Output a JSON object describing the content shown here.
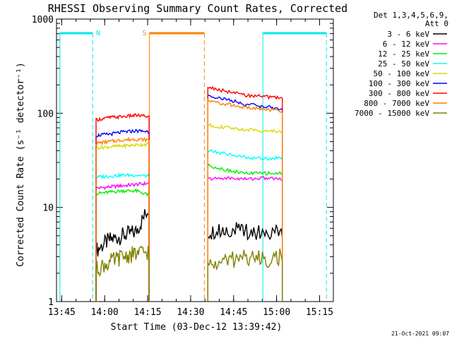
{
  "chart_data": {
    "type": "line",
    "title": "RHESSI Observing Summary Count Rates, Corrected",
    "xlabel": "Start Time (03-Dec-12 13:39:42)",
    "ylabel": "Corrected Count Rate (s⁻¹ detector⁻¹)",
    "yscale": "log",
    "ylim": [
      1,
      1000
    ],
    "xlim_minutes": [
      13.72,
      15.33
    ],
    "x_ticks": [
      "13:45",
      "14:00",
      "14:15",
      "14:30",
      "14:45",
      "15:00",
      "15:15"
    ],
    "y_ticks": [
      "1",
      "10",
      "100",
      "1000"
    ],
    "legend_header": [
      "Det 1,3,4,5,6,9,",
      "Att 0"
    ],
    "legend_position": "right",
    "footer_date": "21-Oct-2021 09:07",
    "series": [
      {
        "name": "3 - 6 keV",
        "color": "#000000",
        "seg1": [
          3.5,
          4.5,
          5.0,
          5.5,
          10.0
        ],
        "seg2": [
          5.5,
          5.8,
          5.6,
          5.5,
          5.4
        ]
      },
      {
        "name": "6 - 12 keV",
        "color": "#ff00ff",
        "seg1": [
          16.0,
          16.5,
          17.0,
          17.5,
          18.0
        ],
        "seg2": [
          20.0,
          20.5,
          20.0,
          20.5,
          20.0
        ]
      },
      {
        "name": "12 - 25 keV",
        "color": "#00ee00",
        "seg1": [
          14.0,
          14.5,
          15.0,
          15.0,
          13.5
        ],
        "seg2": [
          28.0,
          25.0,
          23.0,
          23.0,
          23.0
        ]
      },
      {
        "name": "25 - 50 keV",
        "color": "#00ffff",
        "seg1": [
          21.0,
          21.5,
          22.0,
          22.0,
          21.5
        ],
        "seg2": [
          40.0,
          37.0,
          34.0,
          33.0,
          34.0
        ]
      },
      {
        "name": "50 - 100 keV",
        "color": "#d8d800",
        "seg1": [
          43.0,
          44.0,
          45.0,
          46.0,
          47.0
        ],
        "seg2": [
          75.0,
          70.0,
          67.0,
          65.0,
          64.0
        ]
      },
      {
        "name": "100 - 300 keV",
        "color": "#0000ff",
        "seg1": [
          58.0,
          60.0,
          63.0,
          65.0,
          64.0
        ],
        "seg2": [
          155.0,
          140.0,
          125.0,
          118.0,
          110.0
        ]
      },
      {
        "name": "300 - 800 keV",
        "color": "#ff0000",
        "seg1": [
          85.0,
          90.0,
          92.0,
          95.0,
          92.0
        ],
        "seg2": [
          190.0,
          170.0,
          155.0,
          150.0,
          145.0
        ]
      },
      {
        "name": "800 - 7000 keV",
        "color": "#ff8000",
        "seg1": [
          48.0,
          50.0,
          52.0,
          53.0,
          52.0
        ],
        "seg2": [
          135.0,
          125.0,
          115.0,
          110.0,
          105.0
        ]
      },
      {
        "name": "7000 - 15000 keV",
        "color": "#808000",
        "seg1": [
          2.2,
          2.6,
          3.0,
          3.2,
          3.4
        ],
        "seg2": [
          2.4,
          2.7,
          3.0,
          2.8,
          3.0
        ]
      }
    ],
    "flags": [
      {
        "label": "N",
        "color": "#00e8e8",
        "bars": [
          [
            13.74,
            13.93
          ],
          [
            14.92,
            15.29
          ]
        ],
        "dashes": [
          13.93,
          15.29
        ],
        "solids": [
          13.74,
          14.92
        ]
      },
      {
        "label": "S",
        "color": "#ff8000",
        "bars": [
          [
            14.26,
            14.58
          ]
        ],
        "dashes": [
          14.58
        ],
        "solids": [
          14.26
        ]
      }
    ]
  }
}
